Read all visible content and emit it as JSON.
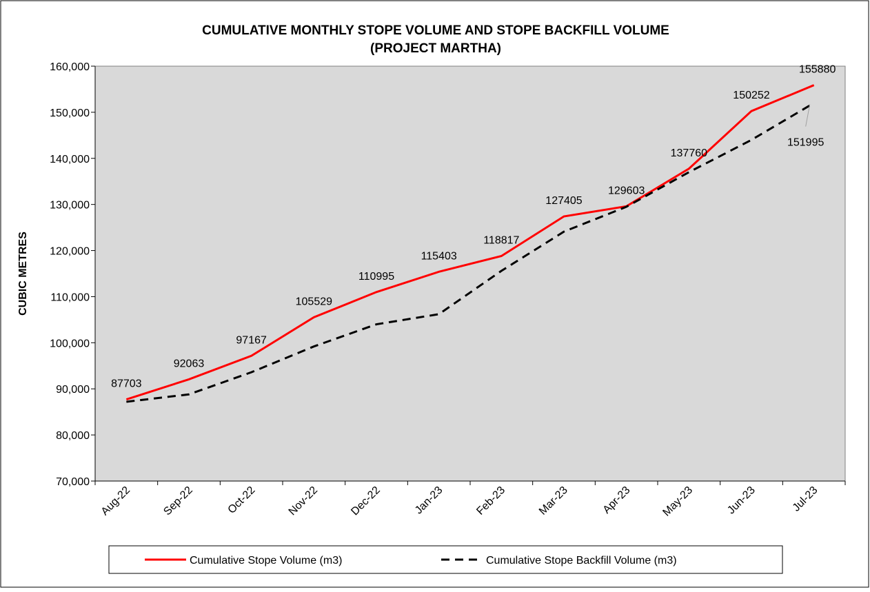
{
  "chart_data": {
    "type": "line",
    "title": "CUMULATIVE MONTHLY STOPE VOLUME AND STOPE BACKFILL VOLUME",
    "subtitle": "(PROJECT MARTHA)",
    "y_label": "CUBIC METRES",
    "categories": [
      "Aug-22",
      "Sep-22",
      "Oct-22",
      "Nov-22",
      "Dec-22",
      "Jan-23",
      "Feb-23",
      "Mar-23",
      "Apr-23",
      "May-23",
      "Jun-23",
      "Jul-23"
    ],
    "series": [
      {
        "name": "Cumulative Stope Volume (m3)",
        "color": "#ff0000",
        "dash": false,
        "values": [
          87703,
          92063,
          97167,
          105529,
          110995,
          115403,
          118817,
          127405,
          129603,
          137760,
          150252,
          155880
        ]
      },
      {
        "name": "Cumulative Stope Backfill Volume (m3)",
        "color": "#000000",
        "dash": true,
        "values": [
          87200,
          88800,
          93600,
          99200,
          104000,
          106200,
          115600,
          124100,
          129500,
          137000,
          144000,
          151995
        ]
      }
    ],
    "ylim": [
      70000,
      160000
    ],
    "yticks": [
      {
        "value": 70000,
        "label": "70,000"
      },
      {
        "value": 80000,
        "label": "80,000"
      },
      {
        "value": 90000,
        "label": "90,000"
      },
      {
        "value": 100000,
        "label": "100,000"
      },
      {
        "value": 110000,
        "label": "110,000"
      },
      {
        "value": 120000,
        "label": "120,000"
      },
      {
        "value": 130000,
        "label": "130,000"
      },
      {
        "value": 140000,
        "label": "140,000"
      },
      {
        "value": 150000,
        "label": "150,000"
      },
      {
        "value": 160000,
        "label": "160,000"
      }
    ],
    "grid": false,
    "plot_background": "#d9d9d9",
    "legend": "bottom"
  }
}
